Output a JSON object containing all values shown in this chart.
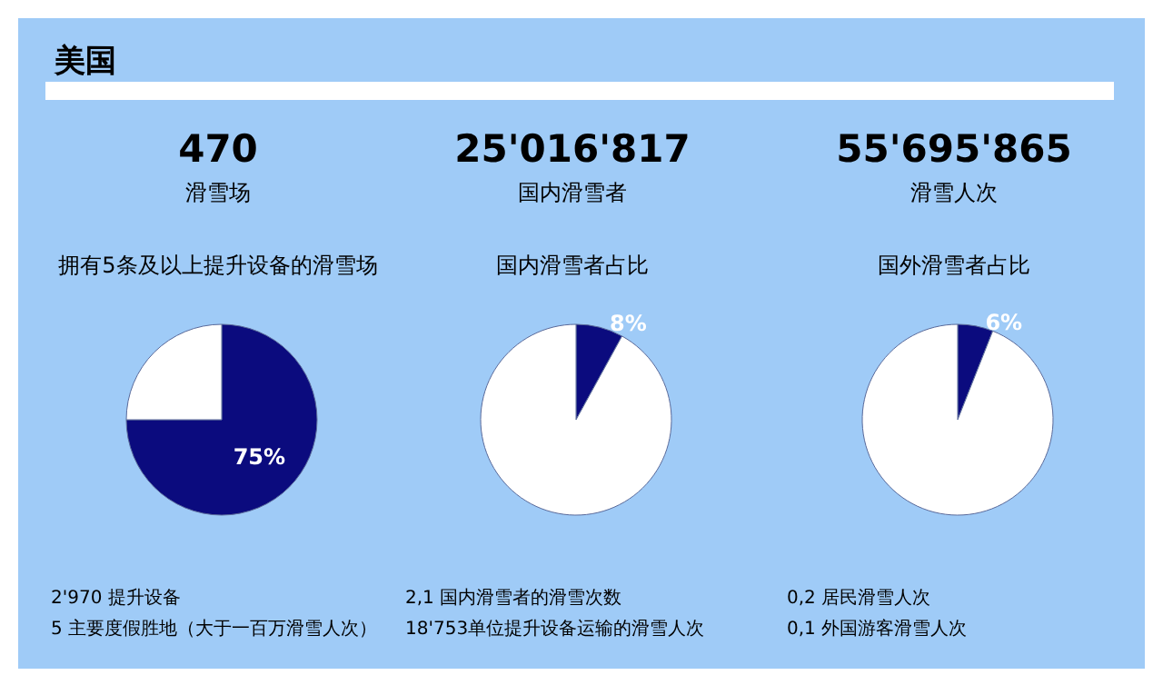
{
  "chart_data": [
    {
      "type": "other",
      "title": "美国"
    },
    {
      "type": "pie",
      "title": "470",
      "subtitle": "滑雪场",
      "xlabel": "拥有5条及以上提升设备的滑雪场",
      "categories": [
        null,
        null
      ],
      "values": [
        75,
        25
      ],
      "colors": [
        "#0b0b7e",
        "#ffffff"
      ],
      "value_labels": [
        "75%",
        null
      ],
      "annotations": [
        "2'970 提升设备",
        "5 主要度假胜地（大于一百万滑雪人次）"
      ]
    },
    {
      "type": "pie",
      "title": "25'016'817",
      "subtitle": "国内滑雪者",
      "xlabel": "国内滑雪者占比",
      "categories": [
        null,
        null
      ],
      "values": [
        8,
        92
      ],
      "colors": [
        "#0b0b7e",
        "#ffffff"
      ],
      "value_labels": [
        "8%",
        null
      ],
      "annotations": [
        "2,1 国内滑雪者的滑雪次数",
        "18'753单位提升设备运输的滑雪人次"
      ]
    },
    {
      "type": "pie",
      "title": "55'695'865",
      "subtitle": "滑雪人次",
      "xlabel": "国外滑雪者占比",
      "categories": [
        null,
        null
      ],
      "values": [
        6,
        94
      ],
      "colors": [
        "#0b0b7e",
        "#ffffff"
      ],
      "value_labels": [
        "6%",
        null
      ],
      "annotations": [
        "0,2 居民滑雪人次",
        "0,1 外国游客滑雪人次"
      ]
    }
  ]
}
